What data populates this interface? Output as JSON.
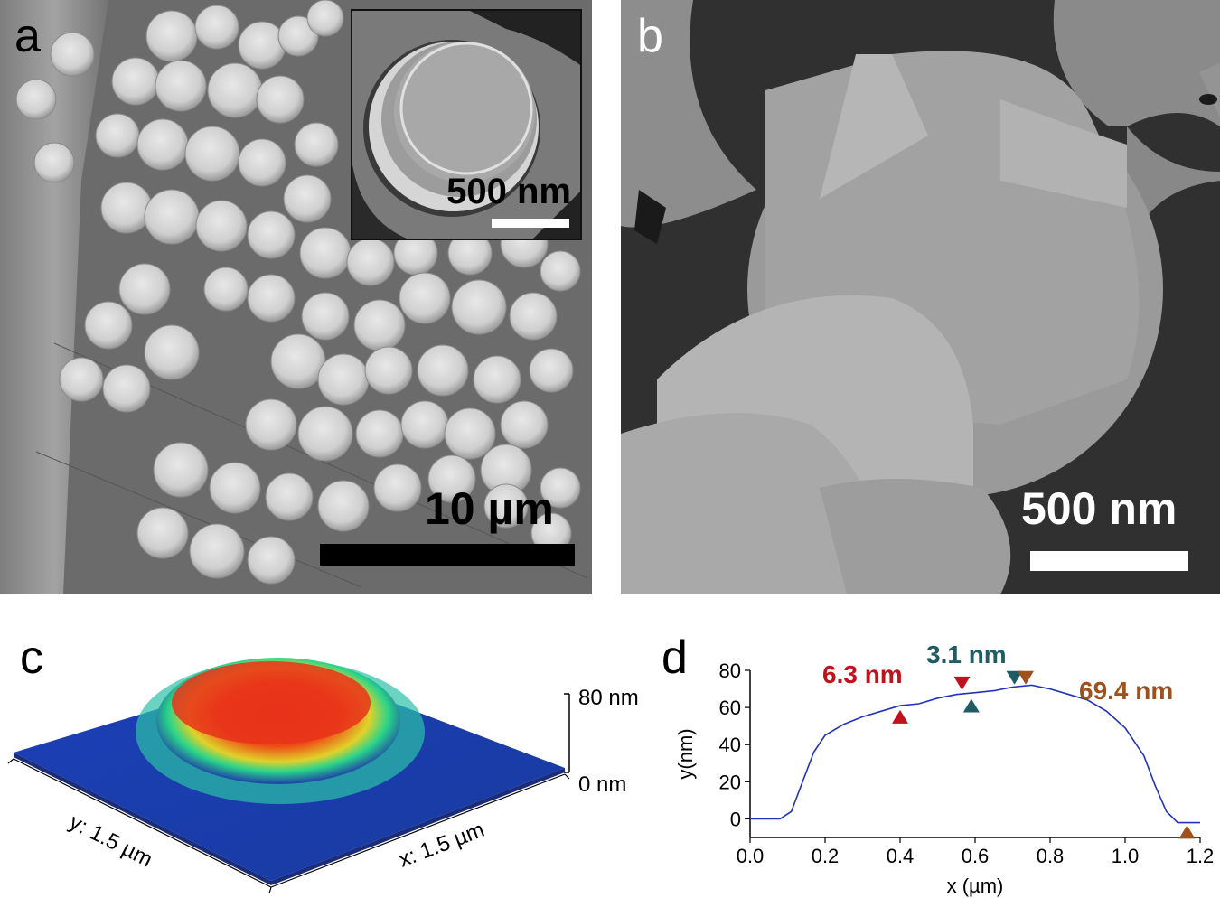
{
  "panels": {
    "a": {
      "label": "a",
      "scale_bar": "10 µm",
      "inset_scale_bar": "500 nm"
    },
    "b": {
      "label": "b",
      "scale_bar": "500 nm"
    },
    "c": {
      "label": "c",
      "z_top": "80 nm",
      "z_bottom": "0 nm",
      "y_axis": "y: 1.5 µm",
      "x_axis": "x: 1.5 µm",
      "colors": {
        "low": "#1f3fa8",
        "mid": "#2ad48a",
        "high": "#e8331a"
      }
    },
    "d": {
      "label": "d",
      "annotations": [
        {
          "text": "6.3 nm",
          "color": "#c0121c"
        },
        {
          "text": "3.1 nm",
          "color": "#1f5c63"
        },
        {
          "text": "69.4 nm",
          "color": "#a0501a"
        }
      ]
    }
  },
  "chart_data": {
    "type": "line",
    "title": "",
    "xlabel": "x (µm)",
    "ylabel": "y(nm)",
    "xlim": [
      0.0,
      1.2
    ],
    "ylim": [
      -10,
      80
    ],
    "x_ticks": [
      "0.0",
      "0.2",
      "0.4",
      "0.6",
      "0.8",
      "1.0",
      "1.2"
    ],
    "y_ticks": [
      "0",
      "20",
      "40",
      "60",
      "80"
    ],
    "line_color": "#2233bb",
    "series": [
      {
        "x": [
          0.0,
          0.08,
          0.11,
          0.14,
          0.17,
          0.2,
          0.25,
          0.3,
          0.35,
          0.4,
          0.45,
          0.5,
          0.55,
          0.6,
          0.65,
          0.7,
          0.75,
          0.8,
          0.85,
          0.9,
          0.95,
          1.0,
          1.05,
          1.08,
          1.11,
          1.14,
          1.17,
          1.2
        ],
        "values": [
          0,
          0,
          4,
          20,
          36,
          45,
          51,
          55,
          58,
          61,
          62,
          65,
          67,
          68,
          69,
          71,
          72,
          70,
          67,
          64,
          58,
          49,
          34,
          18,
          4,
          -2,
          -2,
          -2
        ]
      }
    ],
    "markers": [
      {
        "x": 0.4,
        "y": 55,
        "direction": "up",
        "color": "#c0121c"
      },
      {
        "x": 0.565,
        "y": 73,
        "direction": "down",
        "color": "#c0121c"
      },
      {
        "x": 0.59,
        "y": 61,
        "direction": "up",
        "color": "#1f5c63"
      },
      {
        "x": 0.705,
        "y": 76,
        "direction": "down",
        "color": "#1f5c63"
      },
      {
        "x": 0.735,
        "y": 76,
        "direction": "down",
        "color": "#a0501a"
      },
      {
        "x": 1.165,
        "y": -7,
        "direction": "up",
        "color": "#a0501a"
      }
    ]
  }
}
